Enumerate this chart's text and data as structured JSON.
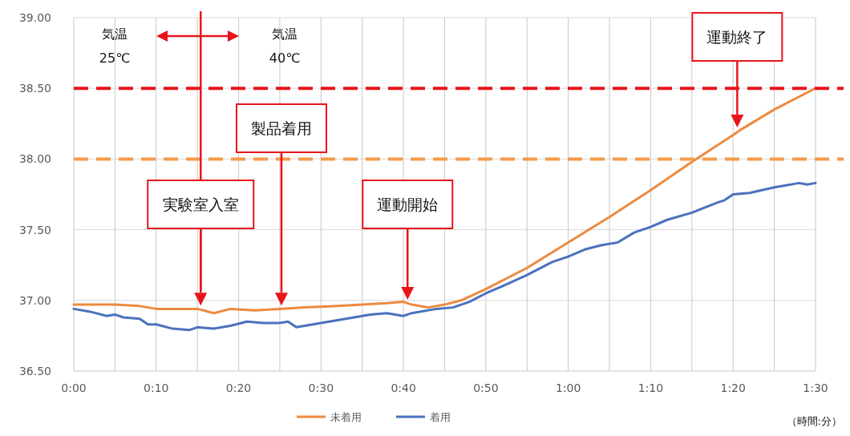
{
  "chart_data": {
    "type": "line",
    "xlim": [
      0,
      90
    ],
    "ylim": [
      36.5,
      39.0
    ],
    "xticks": [
      {
        "value": 0,
        "label": "0:00"
      },
      {
        "value": 5,
        "label": null
      },
      {
        "value": 10,
        "label": "0:10"
      },
      {
        "value": 15,
        "label": null
      },
      {
        "value": 20,
        "label": "0:20"
      },
      {
        "value": 25,
        "label": null
      },
      {
        "value": 30,
        "label": "0:30"
      },
      {
        "value": 35,
        "label": null
      },
      {
        "value": 40,
        "label": "0:40"
      },
      {
        "value": 45,
        "label": null
      },
      {
        "value": 50,
        "label": "0:50"
      },
      {
        "value": 55,
        "label": null
      },
      {
        "value": 60,
        "label": "1:00"
      },
      {
        "value": 65,
        "label": null
      },
      {
        "value": 70,
        "label": "1:10"
      },
      {
        "value": 75,
        "label": null
      },
      {
        "value": 80,
        "label": "1:20"
      },
      {
        "value": 85,
        "label": null
      },
      {
        "value": 90,
        "label": "1:30"
      }
    ],
    "yticks": [
      {
        "value": 36.5,
        "label": "36.50"
      },
      {
        "value": 37.0,
        "label": "37.00"
      },
      {
        "value": 37.5,
        "label": "37.50"
      },
      {
        "value": 38.0,
        "label": "38.00"
      },
      {
        "value": 38.5,
        "label": "38.50"
      },
      {
        "value": 39.0,
        "label": "39.00"
      }
    ],
    "grid": true,
    "legend": "bottom",
    "marker": "none",
    "line_style": "solid",
    "series": [
      {
        "name": "未着用",
        "color": "#ed8a3f",
        "x": [
          0,
          5,
          8,
          10,
          13,
          15,
          17,
          19,
          22,
          25,
          28,
          32,
          35,
          38,
          40,
          41,
          43,
          45,
          47,
          50,
          55,
          60,
          65,
          70,
          75,
          80,
          81,
          85,
          88,
          90
        ],
        "values": [
          36.97,
          36.97,
          36.96,
          36.94,
          36.94,
          36.94,
          36.91,
          36.94,
          36.93,
          36.94,
          36.95,
          36.96,
          36.97,
          36.98,
          36.99,
          36.97,
          36.95,
          36.97,
          37.0,
          37.08,
          37.23,
          37.41,
          37.59,
          37.78,
          37.98,
          38.17,
          38.21,
          38.35,
          38.44,
          38.5
        ]
      },
      {
        "name": "着用",
        "color": "#4a72bc",
        "x": [
          0,
          2,
          4,
          5,
          6,
          8,
          9,
          10,
          12,
          14,
          15,
          17,
          19,
          21,
          23,
          25,
          26,
          27,
          29,
          31,
          33,
          36,
          38,
          40,
          41,
          44,
          46,
          48,
          50,
          52,
          55,
          58,
          60,
          62,
          64,
          66,
          68,
          70,
          72,
          75,
          78,
          79,
          80,
          82,
          85,
          86,
          88,
          89,
          90
        ],
        "values": [
          36.94,
          36.92,
          36.89,
          36.9,
          36.88,
          36.87,
          36.83,
          36.83,
          36.8,
          36.79,
          36.81,
          36.8,
          36.82,
          36.85,
          36.84,
          36.84,
          36.85,
          36.81,
          36.83,
          36.85,
          36.87,
          36.9,
          36.91,
          36.89,
          36.91,
          36.94,
          36.95,
          36.99,
          37.05,
          37.1,
          37.18,
          37.27,
          37.31,
          37.36,
          37.39,
          37.41,
          37.48,
          37.52,
          37.57,
          37.62,
          37.69,
          37.71,
          37.75,
          37.76,
          37.8,
          37.81,
          37.83,
          37.82,
          37.83
        ]
      }
    ],
    "ref_lines": [
      {
        "axis": "y",
        "value": 38.5,
        "color": "#e8141c",
        "line_style": "dashed"
      },
      {
        "axis": "y",
        "value": 38.0,
        "color": "#f39a4a",
        "line_style": "dashed"
      },
      {
        "axis": "x",
        "value": 15.4,
        "color": "#e8141c",
        "line_style": "solid"
      }
    ],
    "annotations": [
      "気温\n25℃",
      "気温\n40℃",
      "（時間:分）",
      "実験室入室",
      "製品着用",
      "運動開始",
      "運動終了"
    ]
  }
}
